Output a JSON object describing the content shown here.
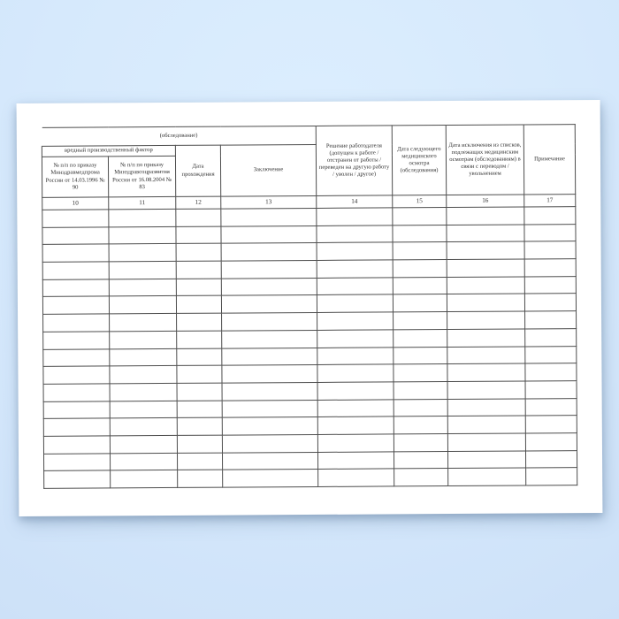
{
  "sheet": {
    "continuation_label": "(обследование)",
    "group_header": "вредный производственный фактор",
    "columns": [
      {
        "number": "10",
        "header": "№ п/п по приказу Минздравмедпрома России от 14.03.1996 № 90"
      },
      {
        "number": "11",
        "header": "№ п/п по приказу Минздравсоцразвития России от 16.08.2004 № 83"
      },
      {
        "number": "12",
        "header": "Дата прохождения"
      },
      {
        "number": "13",
        "header": "Заключение"
      },
      {
        "number": "14",
        "header": "Решение работодателя (допущен к работе / отстранен от работы / переведен на другую работу / уволен / другое)"
      },
      {
        "number": "15",
        "header": "Дата следующего медицинского осмотра (обследования)"
      },
      {
        "number": "16",
        "header": "Дата исключения из списков, подлежащих медицинским осмотрам (обследованиям) в связи с переводом / увольнением"
      },
      {
        "number": "17",
        "header": "Примечание"
      }
    ],
    "empty_row_count": 16,
    "colors": {
      "backdrop": "#d6e9fc",
      "paper": "#ffffff",
      "line": "#4d4d4d",
      "text": "#333333"
    }
  }
}
